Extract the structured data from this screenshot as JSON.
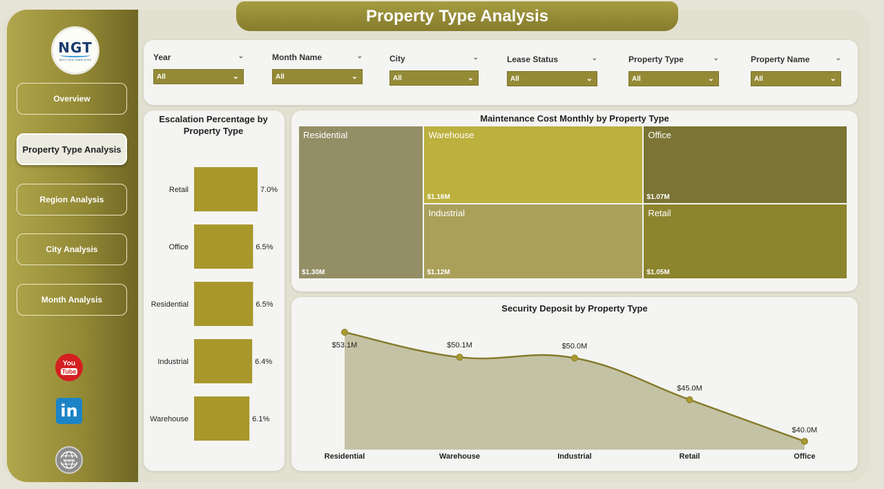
{
  "header": {
    "title": "Property Type Analysis"
  },
  "logo": {
    "text": "NGT",
    "subtitle": "NEXT GEN TEMPLATES"
  },
  "sidebar": {
    "items": [
      {
        "label": "Overview",
        "active": false
      },
      {
        "label": "Property Type Analysis",
        "active": true
      },
      {
        "label": "Region Analysis",
        "active": false
      },
      {
        "label": "City Analysis",
        "active": false
      },
      {
        "label": "Month Analysis",
        "active": false
      }
    ],
    "social": {
      "youtube_top": "You",
      "youtube_bottom": "Tube",
      "linkedin": "in",
      "web_icon": "globe-icon"
    }
  },
  "filters": [
    {
      "label": "Year",
      "value": "All"
    },
    {
      "label": "Month Name",
      "value": "All"
    },
    {
      "label": "City",
      "value": "All"
    },
    {
      "label": "Lease Status",
      "value": "All"
    },
    {
      "label": "Property Type",
      "value": "All"
    },
    {
      "label": "Property Name",
      "value": "All"
    }
  ],
  "colors": {
    "accent": "#948a36",
    "bar": "#a8982c",
    "line": "#857b2c",
    "area": "#c4c2a4"
  },
  "chart_data": [
    {
      "type": "bar",
      "orientation": "horizontal",
      "title": "Escalation Percentage by Property Type",
      "categories": [
        "Retail",
        "Office",
        "Residential",
        "Industrial",
        "Warehouse"
      ],
      "values": [
        7.0,
        6.5,
        6.5,
        6.4,
        6.1
      ],
      "labels": [
        "7.0%",
        "6.5%",
        "6.5%",
        "6.4%",
        "6.1%"
      ]
    },
    {
      "type": "treemap",
      "title": "Maintenance Cost Monthly by Property Type",
      "items": [
        {
          "name": "Residential",
          "value": 1.3,
          "label": "$1.30M",
          "color": "#948e66"
        },
        {
          "name": "Warehouse",
          "value": 1.16,
          "label": "$1.16M",
          "color": "#bcb03e"
        },
        {
          "name": "Office",
          "value": 1.07,
          "label": "$1.07M",
          "color": "#7b7434"
        },
        {
          "name": "Industrial",
          "value": 1.12,
          "label": "$1.12M",
          "color": "#aaa05a"
        },
        {
          "name": "Retail",
          "value": 1.05,
          "label": "$1.05M",
          "color": "#8d842e"
        }
      ]
    },
    {
      "type": "area",
      "title": "Security Deposit by Property Type",
      "categories": [
        "Residential",
        "Warehouse",
        "Industrial",
        "Retail",
        "Office"
      ],
      "values": [
        53.1,
        50.1,
        50.0,
        45.0,
        40.0
      ],
      "labels": [
        "$53.1M",
        "$50.1M",
        "$50.0M",
        "$45.0M",
        "$40.0M"
      ]
    }
  ]
}
